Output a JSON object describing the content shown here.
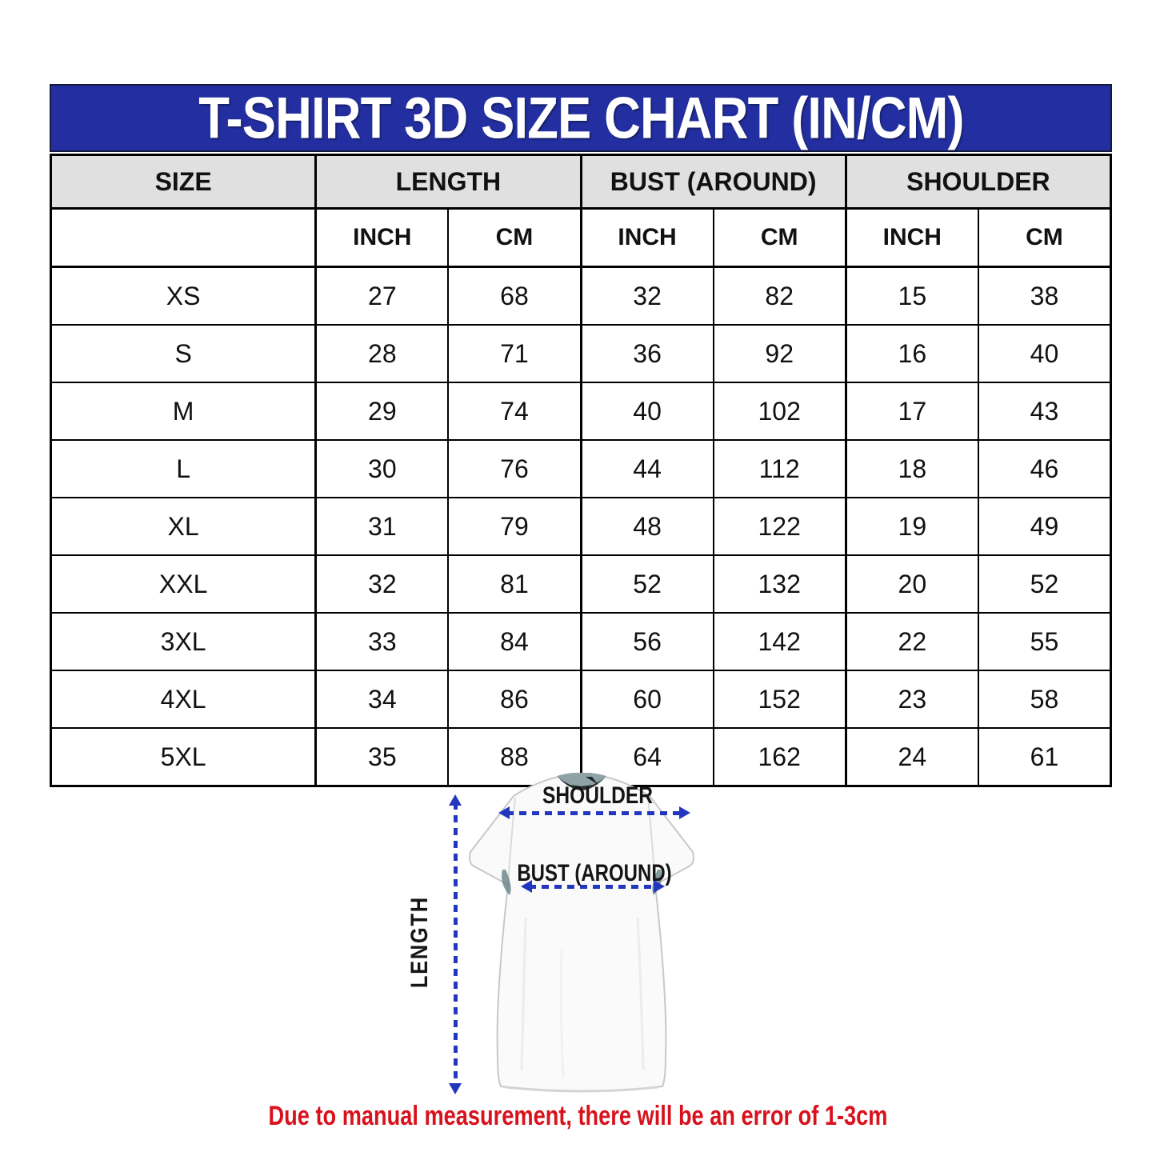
{
  "page": {
    "title": "T-SHIRT 3D SIZE CHART (IN/CM)",
    "note": "Due to manual measurement, there will be an error of 1-3cm"
  },
  "colors": {
    "banner_blue": "#232FA0",
    "header_gray": "#E0E0E0",
    "arrow_blue": "#2337BE",
    "note_red": "#D8121D",
    "border_black": "#000000"
  },
  "table": {
    "group_headers": [
      "SIZE",
      "LENGTH",
      "BUST (AROUND)",
      "SHOULDER"
    ],
    "unit_headers": [
      "INCH",
      "CM",
      "INCH",
      "CM",
      "INCH",
      "CM"
    ],
    "rows": [
      {
        "label": "XS",
        "values": [
          "27",
          "68",
          "32",
          "82",
          "15",
          "38"
        ]
      },
      {
        "label": "S",
        "values": [
          "28",
          "71",
          "36",
          "92",
          "16",
          "40"
        ]
      },
      {
        "label": "M",
        "values": [
          "29",
          "74",
          "40",
          "102",
          "17",
          "43"
        ]
      },
      {
        "label": "L",
        "values": [
          "30",
          "76",
          "44",
          "112",
          "18",
          "46"
        ]
      },
      {
        "label": "XL",
        "values": [
          "31",
          "79",
          "48",
          "122",
          "19",
          "49"
        ]
      },
      {
        "label": "XXL",
        "values": [
          "32",
          "81",
          "52",
          "132",
          "20",
          "52"
        ]
      },
      {
        "label": "3XL",
        "values": [
          "33",
          "84",
          "56",
          "142",
          "22",
          "55"
        ]
      },
      {
        "label": "4XL",
        "values": [
          "34",
          "86",
          "60",
          "152",
          "23",
          "58"
        ]
      },
      {
        "label": "5XL",
        "values": [
          "35",
          "88",
          "64",
          "162",
          "24",
          "61"
        ]
      }
    ]
  },
  "diagram": {
    "shoulder_label": "SHOULDER",
    "bust_label": "BUST (AROUND)",
    "length_label": "LENGTH"
  }
}
